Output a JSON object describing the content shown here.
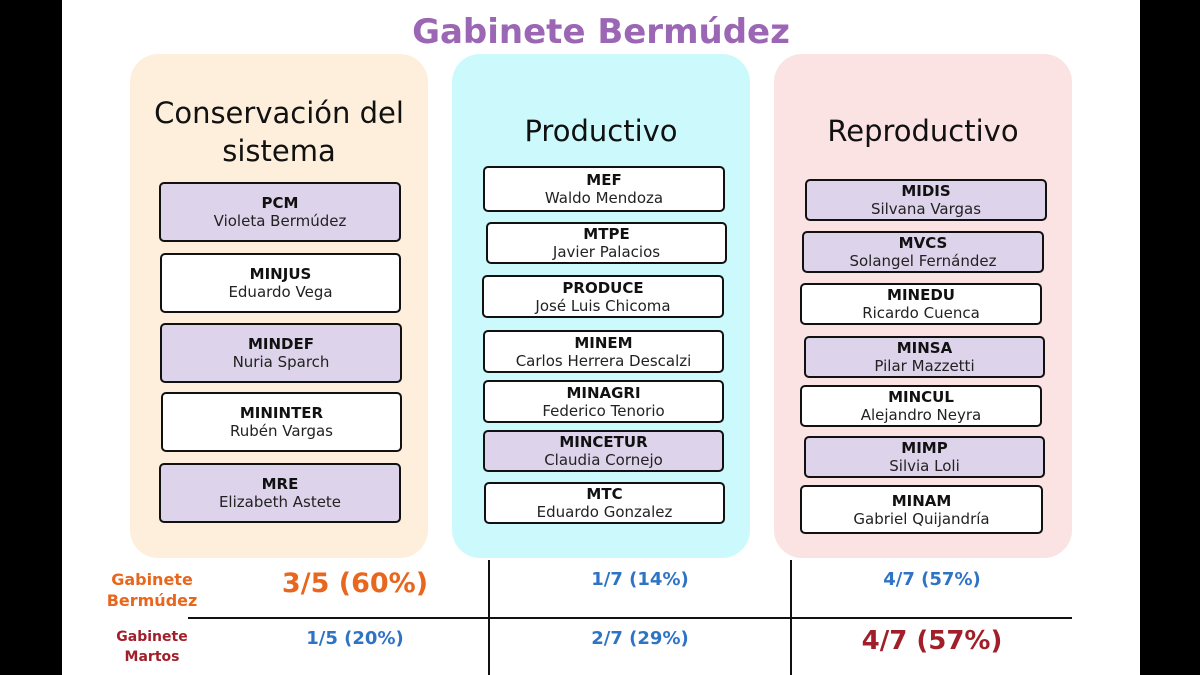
{
  "title": "Gabinete Bermúdez",
  "columns": [
    {
      "heading_lines": [
        "Conservación del",
        "sistema"
      ],
      "boxes": [
        {
          "ministry": "PCM",
          "minister": "Violeta Bermúdez",
          "highlight": true
        },
        {
          "ministry": "MINJUS",
          "minister": "Eduardo Vega",
          "highlight": false
        },
        {
          "ministry": "MINDEF",
          "minister": "Nuria Sparch",
          "highlight": true
        },
        {
          "ministry": "MININTER",
          "minister": "Rubén Vargas",
          "highlight": false
        },
        {
          "ministry": "MRE",
          "minister": "Elizabeth Astete",
          "highlight": true
        }
      ]
    },
    {
      "heading_lines": [
        "Productivo"
      ],
      "boxes": [
        {
          "ministry": "MEF",
          "minister": "Waldo Mendoza",
          "highlight": false
        },
        {
          "ministry": "MTPE",
          "minister": "Javier Palacios",
          "highlight": false
        },
        {
          "ministry": "PRODUCE",
          "minister": "José Luis Chicoma",
          "highlight": false
        },
        {
          "ministry": "MINEM",
          "minister": "Carlos Herrera Descalzi",
          "highlight": false
        },
        {
          "ministry": "MINAGRI",
          "minister": "Federico Tenorio",
          "highlight": false
        },
        {
          "ministry": "MINCETUR",
          "minister": "Claudia Cornejo",
          "highlight": true
        },
        {
          "ministry": "MTC",
          "minister": "Eduardo Gonzalez",
          "highlight": false
        }
      ]
    },
    {
      "heading_lines": [
        "Reproductivo"
      ],
      "boxes": [
        {
          "ministry": "MIDIS",
          "minister": "Silvana Vargas",
          "highlight": true
        },
        {
          "ministry": "MVCS",
          "minister": "Solangel Fernández",
          "highlight": true
        },
        {
          "ministry": "MINEDU",
          "minister": "Ricardo Cuenca",
          "highlight": false
        },
        {
          "ministry": "MINSA",
          "minister": "Pilar Mazzetti",
          "highlight": true
        },
        {
          "ministry": "MINCUL",
          "minister": "Alejandro Neyra",
          "highlight": false
        },
        {
          "ministry": "MIMP",
          "minister": "Silvia Loli",
          "highlight": true
        },
        {
          "ministry": "MINAM",
          "minister": "Gabriel Quijandría",
          "highlight": false
        }
      ]
    }
  ],
  "summary": {
    "rows": [
      {
        "label_lines": [
          "Gabinete",
          "Bermúdez"
        ],
        "label_color": "#e8661d",
        "values": [
          {
            "text": "3/5 (60%)",
            "emphasis": true,
            "color": "#e8661d"
          },
          {
            "text": "1/7  (14%)",
            "emphasis": false,
            "color": "#2e73c4"
          },
          {
            "text": "4/7 (57%)",
            "emphasis": false,
            "color": "#2e73c4"
          }
        ]
      },
      {
        "label_lines": [
          "Gabinete",
          "Martos"
        ],
        "label_color": "#a11f2a",
        "values": [
          {
            "text": "1/5 (20%)",
            "emphasis": false,
            "color": "#2e73c4"
          },
          {
            "text": "2/7  (29%)",
            "emphasis": false,
            "color": "#2e73c4"
          },
          {
            "text": "4/7  (57%)",
            "emphasis": true,
            "color": "#a11f2a"
          }
        ]
      }
    ]
  },
  "colors": {
    "title": "#9b66b4",
    "highlight_box": "#ddd3ea",
    "col_conservacion": "#fdefdc",
    "col_productivo": "#ccfafc",
    "col_reproductivo": "#fbe3e3"
  }
}
